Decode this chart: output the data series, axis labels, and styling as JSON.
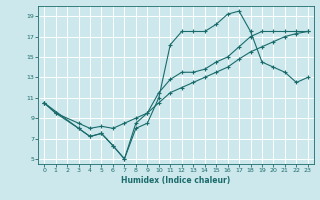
{
  "xlabel": "Humidex (Indice chaleur)",
  "bg_color": "#cce8ec",
  "grid_color": "#ffffff",
  "line_color": "#1a6b6b",
  "xlim": [
    -0.5,
    23.5
  ],
  "ylim": [
    4.5,
    20.0
  ],
  "yticks": [
    5,
    7,
    9,
    11,
    13,
    15,
    17,
    19
  ],
  "xticks": [
    0,
    1,
    2,
    3,
    4,
    5,
    6,
    7,
    8,
    9,
    10,
    11,
    12,
    13,
    14,
    15,
    16,
    17,
    18,
    19,
    20,
    21,
    22,
    23
  ],
  "line1_x": [
    0,
    1,
    3,
    4,
    5,
    6,
    7,
    8,
    9,
    10,
    11,
    12,
    13,
    14,
    15,
    16,
    17,
    18,
    19,
    20,
    21,
    22,
    23
  ],
  "line1_y": [
    10.5,
    9.5,
    8.0,
    7.2,
    7.5,
    6.3,
    5.0,
    8.0,
    8.5,
    11.0,
    16.2,
    17.5,
    17.5,
    17.5,
    18.2,
    19.2,
    19.5,
    17.5,
    14.5,
    14.0,
    13.5,
    12.5,
    13.0
  ],
  "line2_x": [
    0,
    1,
    3,
    4,
    5,
    6,
    7,
    8,
    9,
    10,
    11,
    12,
    13,
    14,
    15,
    16,
    17,
    18,
    19,
    20,
    21,
    22,
    23
  ],
  "line2_y": [
    10.5,
    9.5,
    8.5,
    8.0,
    8.2,
    8.0,
    8.5,
    9.0,
    9.5,
    10.5,
    11.5,
    12.0,
    12.5,
    13.0,
    13.5,
    14.0,
    14.8,
    15.5,
    16.0,
    16.5,
    17.0,
    17.3,
    17.5
  ],
  "line3_x": [
    0,
    3,
    4,
    5,
    6,
    7,
    8,
    9,
    10,
    11,
    12,
    13,
    14,
    15,
    16,
    17,
    18,
    19,
    20,
    21,
    22,
    23
  ],
  "line3_y": [
    10.5,
    8.0,
    7.2,
    7.5,
    6.3,
    5.0,
    8.5,
    9.5,
    11.5,
    12.8,
    13.5,
    13.5,
    13.8,
    14.5,
    15.0,
    16.0,
    17.0,
    17.5,
    17.5,
    17.5,
    17.5,
    17.5
  ]
}
